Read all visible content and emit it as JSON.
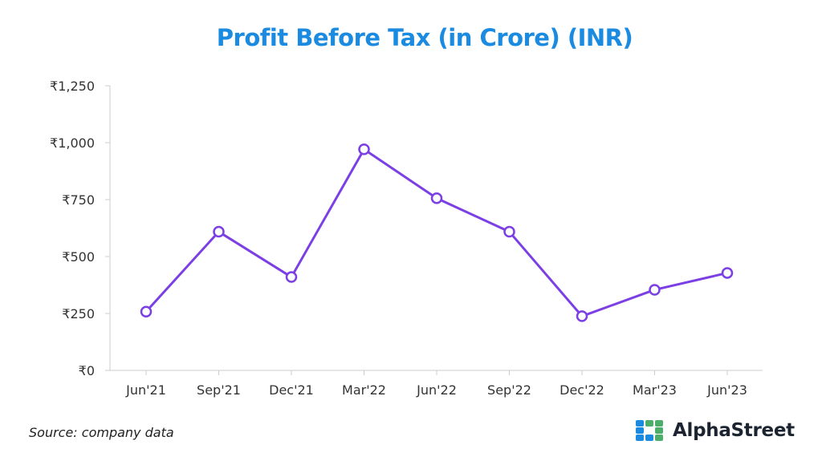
{
  "title": "Profit Before Tax (in Crore) (INR)",
  "source": "Source: company data",
  "brand": {
    "name": "AlphaStreet",
    "logo_icon": "alphastreet-logo-icon"
  },
  "colors": {
    "title": "#1a8be0",
    "line": "#7b3fe4",
    "axis": "#cccccc",
    "logo_blue": "#1a8be0",
    "logo_green": "#4cae6a"
  },
  "chart_data": {
    "type": "line",
    "categories": [
      "Jun'21",
      "Sep'21",
      "Dec'21",
      "Mar'22",
      "Jun'22",
      "Sep'22",
      "Dec'22",
      "Mar'23",
      "Jun'23"
    ],
    "values": [
      258,
      609,
      410,
      971,
      756,
      609,
      238,
      354,
      428
    ],
    "ylim": [
      0,
      1250
    ],
    "yticks": [
      0,
      250,
      500,
      750,
      1000,
      1250
    ],
    "ytick_labels": [
      "₹0",
      "₹250",
      "₹500",
      "₹750",
      "₹1,000",
      "₹1,250"
    ],
    "grid": false,
    "legend": "none"
  }
}
